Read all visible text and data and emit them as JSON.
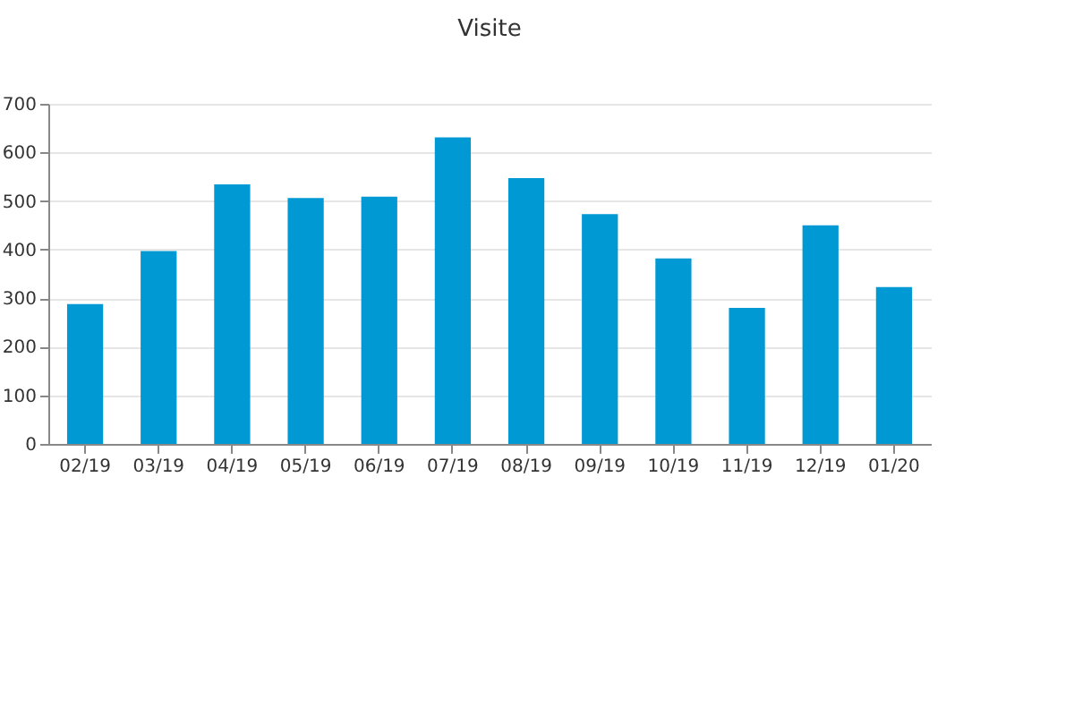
{
  "chart_data": {
    "type": "bar",
    "title": "Visite",
    "categories": [
      "02/19",
      "03/19",
      "04/19",
      "05/19",
      "06/19",
      "07/19",
      "08/19",
      "09/19",
      "10/19",
      "11/19",
      "12/19",
      "01/20"
    ],
    "values": [
      288,
      397,
      534,
      506,
      509,
      631,
      547,
      473,
      382,
      280,
      450,
      323
    ],
    "color": "#0099d4",
    "ylim": [
      0,
      700
    ],
    "yticks": [
      0,
      100,
      200,
      300,
      400,
      500,
      600,
      700
    ],
    "grid": "y"
  }
}
